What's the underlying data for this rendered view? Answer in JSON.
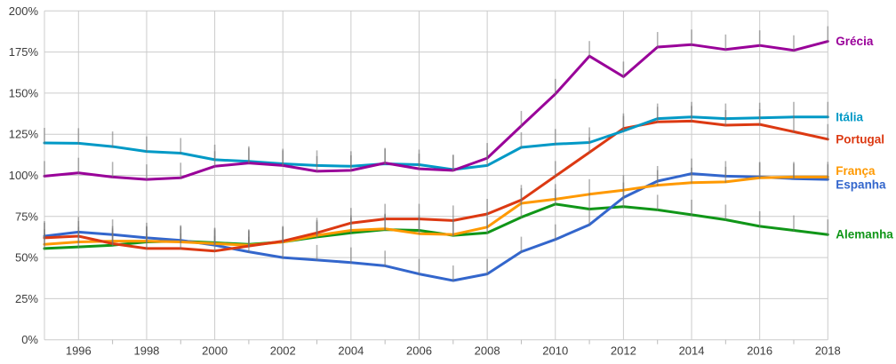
{
  "chart_data": {
    "type": "line",
    "title": "",
    "xlabel": "",
    "ylabel": "",
    "grid": true,
    "legend_position": "right-end-labels",
    "xlim": [
      1995,
      2018
    ],
    "ylim": [
      0,
      200
    ],
    "years": [
      1995,
      1996,
      1997,
      1998,
      1999,
      2000,
      2001,
      2002,
      2003,
      2004,
      2005,
      2006,
      2007,
      2008,
      2009,
      2010,
      2011,
      2012,
      2013,
      2014,
      2015,
      2016,
      2017,
      2018
    ],
    "x_major_ticks": [
      1996,
      1998,
      2000,
      2002,
      2004,
      2006,
      2008,
      2010,
      2012,
      2014,
      2016,
      2018
    ],
    "x_tick_labels": [
      "1996",
      "1998",
      "2000",
      "2002",
      "2004",
      "2006",
      "2008",
      "2010",
      "2012",
      "2014",
      "2016",
      "2018"
    ],
    "x_minor_ticks": [
      1997,
      1999,
      2001,
      2003,
      2005,
      2007,
      2009,
      2011,
      2013,
      2015,
      2017
    ],
    "y_tick_values": [
      0,
      25,
      50,
      75,
      100,
      125,
      150,
      175,
      200
    ],
    "y_tick_labels": [
      "0%",
      "25%",
      "50%",
      "75%",
      "100%",
      "125%",
      "150%",
      "175%",
      "200%"
    ],
    "grid_color": "#cccccc",
    "axis_text_color": "#3c3c3c",
    "point_stem_color": "rgba(115,115,115,0.55)",
    "series": [
      {
        "name": "Alemanha",
        "color": "#109618",
        "label_dy": 0,
        "values": [
          55.5,
          56.5,
          57.5,
          59.5,
          60.0,
          59.0,
          58.0,
          59.5,
          62.5,
          65.0,
          67.0,
          66.5,
          63.5,
          65.0,
          74.5,
          82.5,
          79.5,
          81.0,
          79.0,
          76.0,
          73.0,
          69.0,
          66.5,
          64.0
        ]
      },
      {
        "name": "Espanha",
        "color": "#3366CC",
        "label_dy": 6,
        "values": [
          63.0,
          65.5,
          64.0,
          62.0,
          60.5,
          57.5,
          53.5,
          50.0,
          48.5,
          47.0,
          45.0,
          40.0,
          36.0,
          40.0,
          53.5,
          61.0,
          70.0,
          86.5,
          96.5,
          101.0,
          99.5,
          99.0,
          98.0,
          97.5
        ]
      },
      {
        "name": "França",
        "color": "#FF9900",
        "label_dy": -7,
        "values": [
          58.0,
          59.5,
          60.0,
          60.0,
          59.5,
          58.5,
          57.5,
          59.5,
          63.5,
          66.5,
          67.5,
          64.5,
          64.0,
          68.5,
          83.0,
          85.5,
          88.5,
          91.0,
          94.0,
          95.5,
          96.0,
          98.5,
          99.0,
          99.0
        ]
      },
      {
        "name": "Portugal",
        "color": "#DC3912",
        "label_dy": 0,
        "values": [
          62.0,
          63.0,
          58.5,
          55.5,
          55.5,
          54.0,
          57.0,
          60.0,
          65.0,
          71.0,
          73.5,
          73.5,
          72.5,
          76.5,
          85.0,
          99.5,
          114.0,
          128.5,
          132.5,
          133.0,
          130.5,
          131.0,
          126.5,
          122.0
        ]
      },
      {
        "name": "Itália",
        "color": "#0099C6",
        "label_dy": 0,
        "values": [
          119.7,
          119.5,
          117.5,
          114.5,
          113.5,
          109.5,
          108.5,
          107.0,
          106.0,
          105.5,
          107.0,
          106.5,
          103.5,
          106.0,
          117.0,
          119.0,
          120.0,
          127.0,
          134.5,
          135.5,
          134.5,
          135.0,
          135.5,
          135.5
        ]
      },
      {
        "name": "Grécia",
        "color": "#990099",
        "label_dy": 0,
        "values": [
          99.5,
          101.5,
          99.0,
          97.5,
          98.5,
          105.5,
          107.5,
          106.0,
          102.5,
          103.0,
          107.5,
          104.0,
          103.0,
          110.5,
          130.0,
          149.5,
          172.5,
          160.0,
          178.0,
          179.5,
          176.5,
          179.0,
          176.0,
          181.5
        ]
      }
    ]
  }
}
